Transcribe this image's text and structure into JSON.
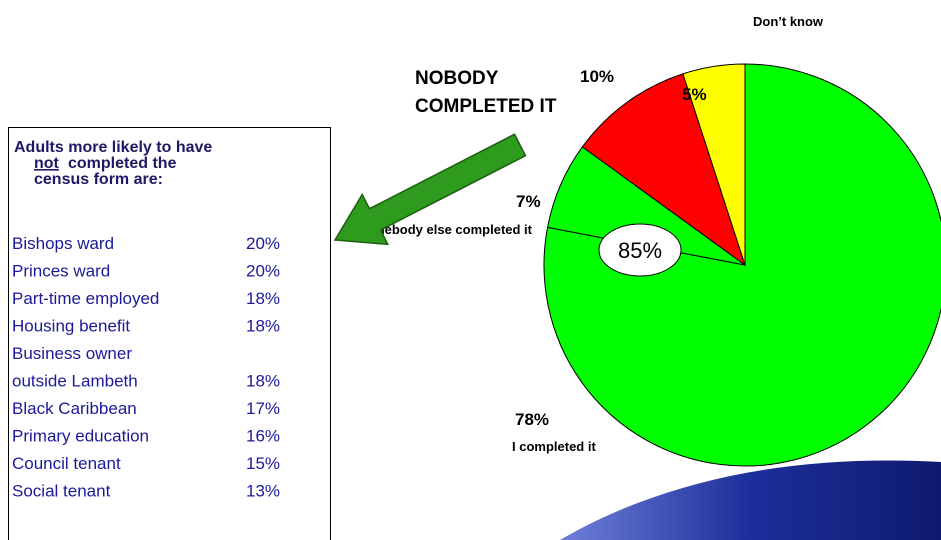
{
  "chart_data": {
    "type": "pie",
    "categories": [
      "I completed it",
      "Somebody else completed it",
      "NOBODY COMPLETED IT",
      "Don’t know"
    ],
    "values": [
      78,
      7,
      10,
      5
    ],
    "value_labels": [
      "78%",
      "7%",
      "10%",
      "5%"
    ],
    "colors": [
      "#00ff00",
      "#00ff00",
      "#ff0000",
      "#ffff00"
    ],
    "annotations": {
      "combined": "85%"
    }
  },
  "box": {
    "heading": {
      "line1": "Adults more likely to have",
      "underlined": "not",
      "line2": "completed the",
      "line3": "census form are:"
    },
    "rows": [
      {
        "label": [
          "Bishops ward"
        ],
        "value": "20%"
      },
      {
        "label": [
          "Princes ward"
        ],
        "value": "20%"
      },
      {
        "label": [
          "Part-time employed"
        ],
        "value": "18%"
      },
      {
        "label": [
          "Housing benefit"
        ],
        "value": "18%"
      },
      {
        "label": [
          "Business owner",
          "outside Lambeth"
        ],
        "value": "18%"
      },
      {
        "label": [
          "Black Caribbean"
        ],
        "value": "17%"
      },
      {
        "label": [
          "Primary education"
        ],
        "value": "16%"
      },
      {
        "label": [
          "Council tenant"
        ],
        "value": "15%"
      },
      {
        "label": [
          "Social tenant"
        ],
        "value": "13%"
      }
    ]
  }
}
